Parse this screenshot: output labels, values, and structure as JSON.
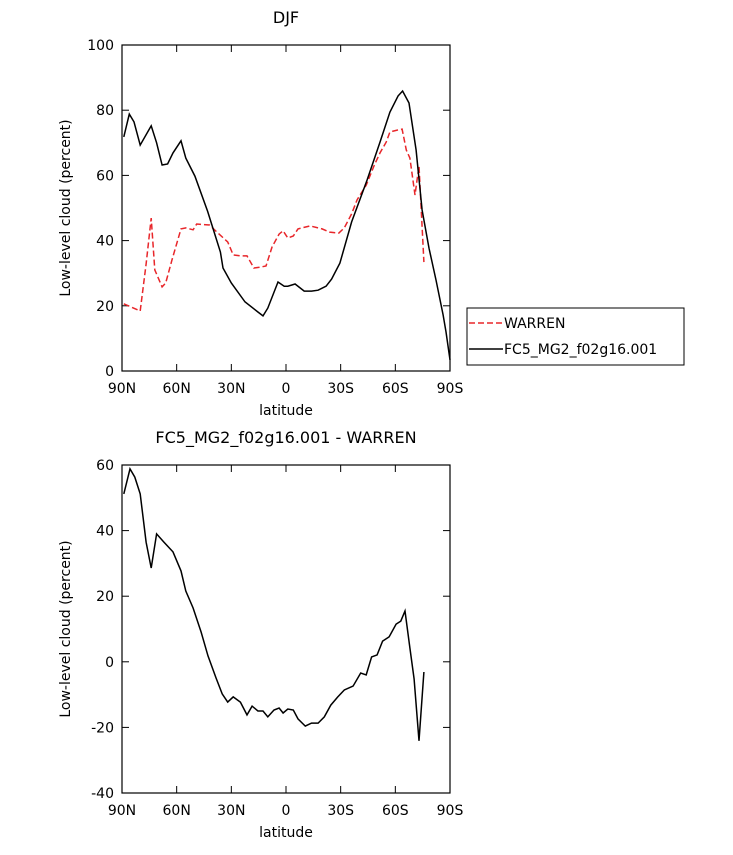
{
  "chart_data": [
    {
      "type": "line",
      "title": "DJF",
      "x_label": "latitude",
      "y_label": "Low-level cloud (percent)",
      "xlim": [
        90,
        -90
      ],
      "ylim": [
        0,
        100
      ],
      "xticks": [
        {
          "value": 90,
          "label": "90N"
        },
        {
          "value": 60,
          "label": "60N"
        },
        {
          "value": 30,
          "label": "30N"
        },
        0,
        {
          "value": -30,
          "label": "30S"
        },
        {
          "value": -60,
          "label": "60S"
        },
        {
          "value": -90,
          "label": "90S"
        }
      ],
      "yticks": [
        0,
        20,
        40,
        60,
        80,
        100
      ],
      "legend": "right",
      "series": [
        {
          "name": "WARREN",
          "color": "#e8262a",
          "style": "dashed",
          "x": [
            89,
            80,
            76.8,
            74,
            72,
            68,
            66,
            62.6,
            57.6,
            55,
            51,
            49,
            42,
            37.3,
            32,
            29,
            25,
            21.4,
            17.6,
            13.7,
            11,
            7.7,
            3.8,
            1.6,
            -1,
            -4,
            -6.6,
            -13.2,
            -19.8,
            -24,
            -29,
            -32,
            -36,
            -39,
            -44,
            -48.3,
            -51.6,
            -55,
            -57,
            -61,
            -63.7,
            -66,
            -68,
            -70.8,
            -73,
            -75.7
          ],
          "values": [
            20.6,
            18.4,
            32.8,
            46.9,
            31,
            25.8,
            27,
            34,
            43.6,
            43.9,
            43.3,
            45.1,
            44.8,
            42.3,
            39.6,
            35.6,
            35.3,
            35.3,
            31.6,
            31.9,
            32.2,
            38,
            42,
            43,
            40.8,
            41.4,
            43.6,
            44.5,
            43.6,
            42.6,
            42.3,
            43.9,
            48.2,
            52.5,
            57,
            62.9,
            66.9,
            70.2,
            73.3,
            73.9,
            74.2,
            67.8,
            65.3,
            54,
            62.9,
            33.4
          ]
        },
        {
          "name": "FC5_MG2_f02g16.001",
          "color": "#000000",
          "style": "solid",
          "x": [
            89,
            86,
            83.4,
            80,
            74,
            71,
            68,
            65,
            62,
            57.6,
            55,
            50,
            43,
            36,
            34.6,
            30,
            22.5,
            15.4,
            12.6,
            10,
            4.4,
            1,
            -1,
            -5,
            -10,
            -14,
            -17.6,
            -22,
            -25,
            -29.6,
            -36,
            -44.5,
            -51.6,
            -57,
            -61.5,
            -64,
            -67.5,
            -71.4,
            -74.7,
            -78.5,
            -82.3,
            -86.2,
            -87.8,
            -90
          ],
          "values": [
            71.8,
            78.8,
            76.4,
            69.3,
            75.2,
            70,
            63.2,
            63.5,
            66.9,
            70.6,
            65.3,
            59.8,
            49,
            36.5,
            31.6,
            27,
            21.2,
            18.1,
            16.9,
            19.3,
            27.3,
            26,
            26,
            26.7,
            24.5,
            24.5,
            24.8,
            26,
            28.2,
            33.1,
            45.7,
            58.6,
            70.2,
            79.4,
            84.4,
            85.9,
            82.2,
            67.8,
            49.4,
            37.7,
            27.9,
            17.2,
            12,
            3.4
          ]
        }
      ]
    },
    {
      "type": "line",
      "title": "FC5_MG2_f02g16.001 - WARREN",
      "x_label": "latitude",
      "y_label": "Low-level cloud (percent)",
      "xlim": [
        90,
        -90
      ],
      "ylim": [
        -40,
        60
      ],
      "xticks": [
        {
          "value": 90,
          "label": "90N"
        },
        {
          "value": 60,
          "label": "60N"
        },
        {
          "value": 30,
          "label": "30N"
        },
        0,
        {
          "value": -30,
          "label": "30S"
        },
        {
          "value": -60,
          "label": "60S"
        },
        {
          "value": -90,
          "label": "90S"
        }
      ],
      "yticks": [
        -40,
        -20,
        0,
        20,
        40,
        60
      ],
      "series": [
        {
          "color": "#000000",
          "style": "solid",
          "x": [
            89,
            85.6,
            83,
            80,
            76.8,
            74,
            71,
            67,
            62,
            57.6,
            55,
            51,
            46.6,
            42.8,
            38.4,
            35,
            32,
            29,
            25,
            21.4,
            18.6,
            15.4,
            12.6,
            10,
            6.6,
            3.8,
            1.6,
            -1,
            -4,
            -6.6,
            -10.6,
            -14,
            -17.6,
            -21,
            -24.6,
            -28.4,
            -32,
            -36.8,
            -41,
            -44,
            -47,
            -50,
            -53,
            -56.6,
            -60.4,
            -63,
            -65.3,
            -68,
            -70.3,
            -73,
            -75.7
          ],
          "values": [
            51.2,
            58.8,
            56.3,
            51.2,
            36.5,
            28.6,
            39,
            36.5,
            33.5,
            27.7,
            21.6,
            16.4,
            9.1,
            1.8,
            -4.9,
            -9.8,
            -12.3,
            -10.7,
            -12.3,
            -16.2,
            -13.5,
            -15,
            -15,
            -16.8,
            -14.7,
            -14.1,
            -15.6,
            -14.4,
            -14.7,
            -17.4,
            -19.6,
            -18.7,
            -18.7,
            -16.8,
            -13.2,
            -10.7,
            -8.6,
            -7.4,
            -3.4,
            -4,
            1.5,
            2.1,
            6.3,
            7.6,
            11.5,
            12.4,
            15.5,
            4.2,
            -5.2,
            -24.1,
            -3.1
          ]
        }
      ]
    }
  ]
}
